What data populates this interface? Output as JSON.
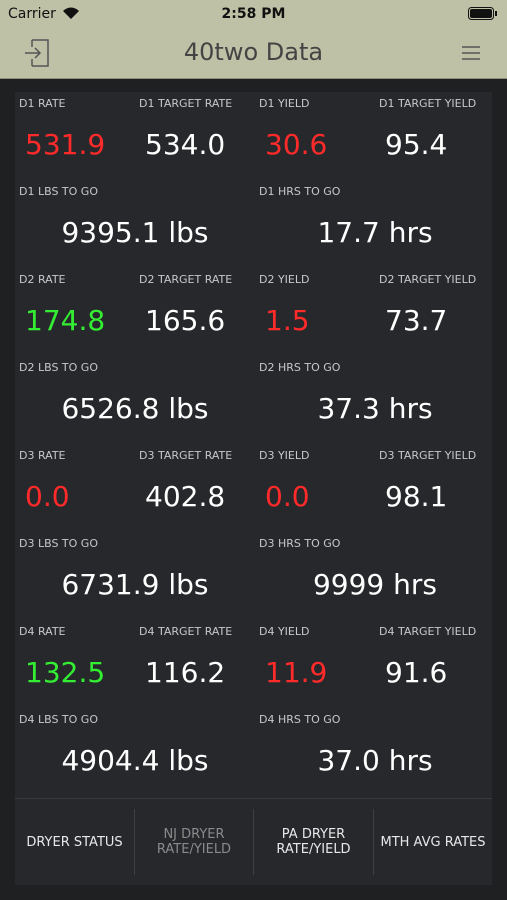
{
  "status_bar": {
    "carrier": "Carrier",
    "time": "2:58 PM"
  },
  "header": {
    "title": "40two Data"
  },
  "dryers": [
    {
      "metrics": [
        {
          "label": "D1 RATE",
          "value": "531.9",
          "color": "#ff2a2a"
        },
        {
          "label": "D1 TARGET RATE",
          "value": "534.0",
          "color": "#ffffff"
        },
        {
          "label": "D1 YIELD",
          "value": "30.6",
          "color": "#ff2a2a"
        },
        {
          "label": "D1 TARGET YIELD",
          "value": "95.4",
          "color": "#ffffff"
        }
      ],
      "totals": [
        {
          "label": "D1 LBS TO GO",
          "value": "9395.1 lbs"
        },
        {
          "label": "D1 HRS TO GO",
          "value": "17.7 hrs"
        }
      ]
    },
    {
      "metrics": [
        {
          "label": "D2 RATE",
          "value": "174.8",
          "color": "#33ee33"
        },
        {
          "label": "D2 TARGET RATE",
          "value": "165.6",
          "color": "#ffffff"
        },
        {
          "label": "D2 YIELD",
          "value": "1.5",
          "color": "#ff2a2a"
        },
        {
          "label": "D2 TARGET YIELD",
          "value": "73.7",
          "color": "#ffffff"
        }
      ],
      "totals": [
        {
          "label": "D2 LBS TO GO",
          "value": "6526.8 lbs"
        },
        {
          "label": "D2 HRS TO GO",
          "value": "37.3 hrs"
        }
      ]
    },
    {
      "metrics": [
        {
          "label": "D3 RATE",
          "value": "0.0",
          "color": "#ff2a2a"
        },
        {
          "label": "D3 TARGET RATE",
          "value": "402.8",
          "color": "#ffffff"
        },
        {
          "label": "D3 YIELD",
          "value": "0.0",
          "color": "#ff2a2a"
        },
        {
          "label": "D3 TARGET YIELD",
          "value": "98.1",
          "color": "#ffffff"
        }
      ],
      "totals": [
        {
          "label": "D3 LBS TO GO",
          "value": "6731.9 lbs"
        },
        {
          "label": "D3 HRS TO GO",
          "value": "9999 hrs"
        }
      ]
    },
    {
      "metrics": [
        {
          "label": "D4 RATE",
          "value": "132.5",
          "color": "#33ee33"
        },
        {
          "label": "D4 TARGET RATE",
          "value": "116.2",
          "color": "#ffffff"
        },
        {
          "label": "D4 YIELD",
          "value": "11.9",
          "color": "#ff2a2a"
        },
        {
          "label": "D4 TARGET YIELD",
          "value": "91.6",
          "color": "#ffffff"
        }
      ],
      "totals": [
        {
          "label": "D4 LBS TO GO",
          "value": "4904.4 lbs"
        },
        {
          "label": "D4 HRS TO GO",
          "value": "37.0 hrs"
        }
      ]
    }
  ],
  "tabs": [
    {
      "label": "DRYER STATUS",
      "active": true
    },
    {
      "label": "NJ DRYER RATE/YIELD",
      "active": false
    },
    {
      "label": "PA DRYER RATE/YIELD",
      "active": true
    },
    {
      "label": "MTH AVG RATES",
      "active": true
    }
  ]
}
